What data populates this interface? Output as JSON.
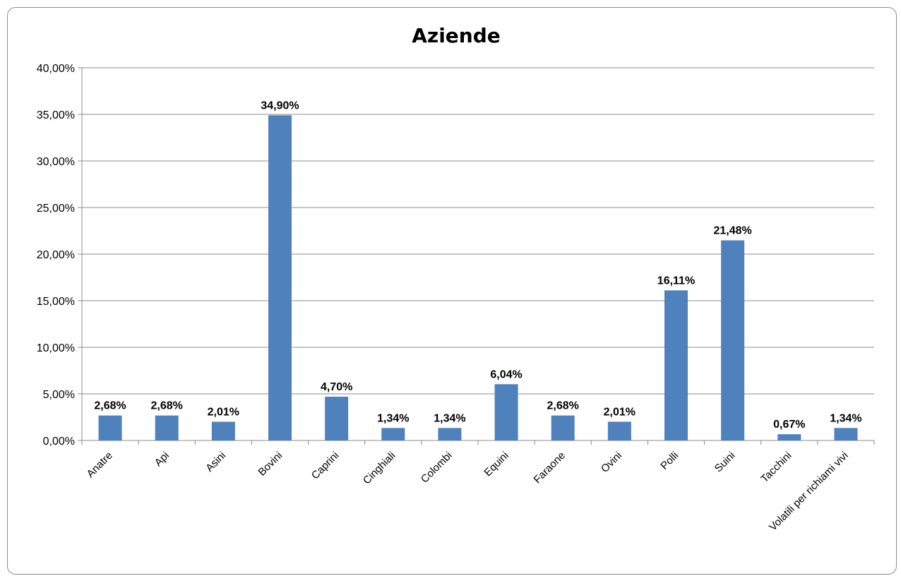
{
  "chart_data": {
    "type": "bar",
    "title": "Aziende",
    "categories": [
      "Anatre",
      "Api",
      "Asini",
      "Bovini",
      "Caprini",
      "Cinghiali",
      "Colombi",
      "Equini",
      "Faraone",
      "Ovini",
      "Polli",
      "Suini",
      "Tacchini",
      "Volatili per richiami vivi"
    ],
    "values": [
      2.68,
      2.68,
      2.01,
      34.9,
      4.7,
      1.34,
      1.34,
      6.04,
      2.68,
      2.01,
      16.11,
      21.48,
      0.67,
      1.34
    ],
    "data_labels": [
      "2,68%",
      "2,68%",
      "2,01%",
      "34,90%",
      "4,70%",
      "1,34%",
      "1,34%",
      "6,04%",
      "2,68%",
      "2,01%",
      "16,11%",
      "21,48%",
      "0,67%",
      "1,34%"
    ],
    "yticks": [
      0,
      5,
      10,
      15,
      20,
      25,
      30,
      35,
      40
    ],
    "ytick_labels": [
      "0,00%",
      "5,00%",
      "10,00%",
      "15,00%",
      "20,00%",
      "25,00%",
      "30,00%",
      "35,00%",
      "40,00%"
    ],
    "ylim": [
      0,
      40
    ],
    "xlabel": "",
    "ylabel": "",
    "grid": true,
    "legend": "none",
    "bar_color": "#4f81bd"
  }
}
